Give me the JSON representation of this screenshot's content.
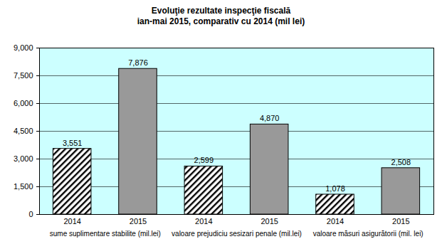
{
  "chart_data": {
    "type": "bar",
    "title": "Evoluţie rezultate inspecţie fiscală",
    "subtitle": "ian-mai 2015, comparativ cu 2014 (mil lei)",
    "categories": [
      "sume suplimentare stabilite (mil.lei)",
      "valoare prejudiciu sesizari penale (mil.lei)",
      "valoare măsuri asigurătorii (mil. lei)"
    ],
    "series": [
      {
        "name": "2014",
        "color": "#000000",
        "values": [
          3551,
          2599,
          1078
        ],
        "value_labels": [
          "3,551",
          "2,599",
          "1,078"
        ]
      },
      {
        "name": "2015",
        "color": "#999999",
        "values": [
          7876,
          4870,
          2508
        ],
        "value_labels": [
          "7,876",
          "4,870",
          "2,508"
        ]
      }
    ],
    "ylim": [
      0,
      9000
    ],
    "yticks": [
      0,
      {
        "value": 1500,
        "label": "1,500"
      },
      {
        "value": 3000,
        "label": "3,000"
      },
      {
        "value": 4500,
        "label": "4,500"
      },
      {
        "value": 6000,
        "label": "6,000"
      },
      {
        "value": 7500,
        "label": "7,500"
      },
      {
        "value": 9000,
        "label": "9,000"
      }
    ],
    "grid": true,
    "data_labels": true
  }
}
